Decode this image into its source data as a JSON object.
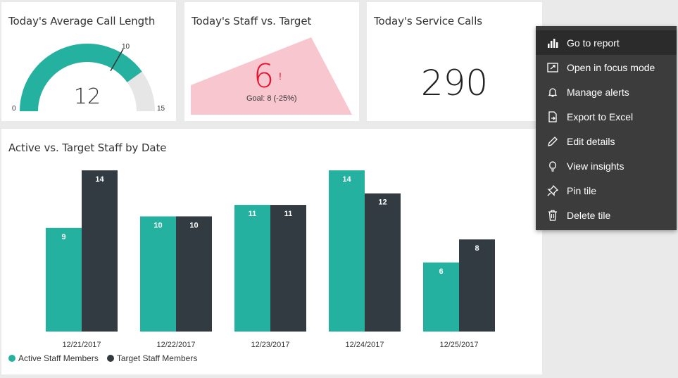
{
  "tiles": {
    "call_length": {
      "title": "Today's Average Call Length",
      "value": "12",
      "min_label": "0",
      "target_label": "10",
      "max_label": "15",
      "gauge_value": 12,
      "gauge_target": 10,
      "gauge_max": 15
    },
    "staff_target": {
      "title": "Today's Staff vs. Target",
      "value": "6",
      "indicator": "!",
      "goal_text": "Goal: 8 (-25%)"
    },
    "service_calls": {
      "title": "Today's Service Calls",
      "value": "290"
    },
    "chart_tile": {
      "title": "Active vs. Target Staff by Date"
    }
  },
  "chart_data": {
    "type": "bar",
    "title": "Active vs. Target Staff by Date",
    "categories": [
      "12/21/2017",
      "12/22/2017",
      "12/23/2017",
      "12/24/2017",
      "12/25/2017"
    ],
    "series": [
      {
        "name": "Active Staff Members",
        "values": [
          9,
          10,
          11,
          14,
          6
        ],
        "color": "#24b19f"
      },
      {
        "name": "Target Staff Members",
        "values": [
          14,
          10,
          11,
          12,
          8
        ],
        "color": "#313b41"
      }
    ],
    "ylim": [
      0,
      14
    ],
    "legend": "bottom-left",
    "grid": false
  },
  "context_menu": {
    "items": [
      {
        "label": "Go to report",
        "icon": "bar-chart-icon"
      },
      {
        "label": "Open in focus mode",
        "icon": "focus-mode-icon"
      },
      {
        "label": "Manage alerts",
        "icon": "bell-icon"
      },
      {
        "label": "Export to Excel",
        "icon": "export-icon"
      },
      {
        "label": "Edit details",
        "icon": "pencil-icon"
      },
      {
        "label": "View insights",
        "icon": "lightbulb-icon"
      },
      {
        "label": "Pin tile",
        "icon": "pin-icon"
      },
      {
        "label": "Delete tile",
        "icon": "trash-icon"
      }
    ]
  },
  "colors": {
    "accent": "#24b19f",
    "dark": "#313b41",
    "gauge_bg": "#e6e6e6",
    "kpi_red": "#e8102c",
    "kpi_area": "#f7c6cf",
    "menu_bg": "#3c3c3c"
  }
}
